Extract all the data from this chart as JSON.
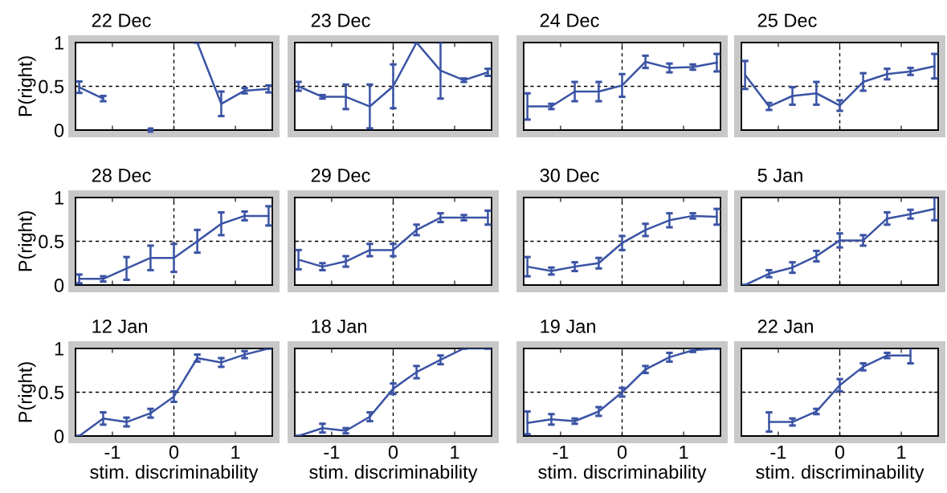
{
  "chart_data": [
    {
      "type": "line",
      "title": "22 Dec",
      "ylabel": "P(right)",
      "tick_labels": "y",
      "x": [
        -1.54,
        -1.15,
        -0.77,
        -0.38,
        0,
        0.38,
        0.77,
        1.15,
        1.54
      ],
      "color": "#3a53a4",
      "values": [
        0.49,
        0.36,
        null,
        0,
        null,
        1.0,
        0.3,
        0.45,
        0.47
      ],
      "errors": [
        0.065,
        0.03,
        null,
        0,
        null,
        0,
        0.14,
        0.03,
        0.04
      ],
      "xlim": [
        -1.6,
        1.6
      ],
      "xticks": [
        {
          "value": -1,
          "label": null
        },
        {
          "value": 0,
          "label": null
        },
        {
          "value": 1,
          "label": null
        }
      ],
      "ylim": [
        0,
        1
      ],
      "yticks": [
        0,
        0.5,
        1
      ],
      "ref_lines": [
        {
          "axis": "x",
          "value": 0,
          "line_style": "dashed"
        },
        {
          "axis": "y",
          "value": 0.5,
          "line_style": "dashed"
        }
      ]
    },
    {
      "type": "line",
      "title": "23 Dec",
      "tick_labels": false,
      "x": [
        -1.54,
        -1.15,
        -0.77,
        -0.38,
        0,
        0.38,
        0.77,
        1.15,
        1.54
      ],
      "color": "#3a53a4",
      "values": [
        0.5,
        0.38,
        0.38,
        0.27,
        0.5,
        1.0,
        0.68,
        0.57,
        0.66
      ],
      "errors": [
        0.05,
        0.02,
        0.14,
        0.25,
        0.25,
        0,
        0.32,
        0.02,
        0.04
      ],
      "xlim": [
        -1.6,
        1.6
      ],
      "xticks": [
        {
          "value": -1,
          "label": null
        },
        {
          "value": 0,
          "label": null
        },
        {
          "value": 1,
          "label": null
        }
      ],
      "ylim": [
        0,
        1
      ],
      "yticks": [
        {
          "value": 0,
          "label": null
        },
        {
          "value": 0.5,
          "label": null
        },
        {
          "value": 1,
          "label": null
        }
      ],
      "ref_lines": [
        {
          "axis": "x",
          "value": 0,
          "line_style": "dashed"
        },
        {
          "axis": "y",
          "value": 0.5,
          "line_style": "dashed"
        }
      ]
    },
    {
      "type": "line",
      "title": "24 Dec",
      "tick_labels": false,
      "x": [
        -1.54,
        -1.15,
        -0.77,
        -0.38,
        0,
        0.38,
        0.77,
        1.15,
        1.54
      ],
      "color": "#3a53a4",
      "values": [
        0.27,
        0.27,
        0.44,
        0.44,
        0.51,
        0.78,
        0.71,
        0.72,
        0.77
      ],
      "errors": [
        0.15,
        0.03,
        0.11,
        0.11,
        0.13,
        0.07,
        0.05,
        0.03,
        0.1
      ],
      "xlim": [
        -1.6,
        1.6
      ],
      "xticks": [
        {
          "value": -1,
          "label": null
        },
        {
          "value": 0,
          "label": null
        },
        {
          "value": 1,
          "label": null
        }
      ],
      "ylim": [
        0,
        1
      ],
      "yticks": [
        {
          "value": 0,
          "label": null
        },
        {
          "value": 0.5,
          "label": null
        },
        {
          "value": 1,
          "label": null
        }
      ],
      "ref_lines": [
        {
          "axis": "x",
          "value": 0,
          "line_style": "dashed"
        },
        {
          "axis": "y",
          "value": 0.5,
          "line_style": "dashed"
        }
      ]
    },
    {
      "type": "line",
      "title": "25 Dec",
      "tick_labels": false,
      "x": [
        -1.54,
        -1.15,
        -0.77,
        -0.38,
        0,
        0.38,
        0.77,
        1.15,
        1.54
      ],
      "color": "#3a53a4",
      "values": [
        0.63,
        0.27,
        0.39,
        0.42,
        0.28,
        0.55,
        0.64,
        0.67,
        0.73
      ],
      "errors": [
        0.16,
        0.04,
        0.1,
        0.13,
        0.06,
        0.1,
        0.06,
        0.04,
        0.14
      ],
      "xlim": [
        -1.6,
        1.6
      ],
      "xticks": [
        {
          "value": -1,
          "label": null
        },
        {
          "value": 0,
          "label": null
        },
        {
          "value": 1,
          "label": null
        }
      ],
      "ylim": [
        0,
        1
      ],
      "yticks": [
        {
          "value": 0,
          "label": null
        },
        {
          "value": 0.5,
          "label": null
        },
        {
          "value": 1,
          "label": null
        }
      ],
      "ref_lines": [
        {
          "axis": "x",
          "value": 0,
          "line_style": "dashed"
        },
        {
          "axis": "y",
          "value": 0.5,
          "line_style": "dashed"
        }
      ]
    },
    {
      "type": "line",
      "title": "28 Dec",
      "ylabel": "P(right)",
      "tick_labels": "y",
      "x": [
        -1.54,
        -1.15,
        -0.77,
        -0.38,
        0,
        0.38,
        0.77,
        1.15,
        1.54
      ],
      "color": "#3a53a4",
      "values": [
        0.07,
        0.07,
        0.19,
        0.31,
        0.31,
        0.5,
        0.7,
        0.79,
        0.79
      ],
      "errors": [
        0.05,
        0.03,
        0.13,
        0.14,
        0.16,
        0.13,
        0.13,
        0.05,
        0.11
      ],
      "xlim": [
        -1.6,
        1.6
      ],
      "xticks": [
        {
          "value": -1,
          "label": null
        },
        {
          "value": 0,
          "label": null
        },
        {
          "value": 1,
          "label": null
        }
      ],
      "ylim": [
        0,
        1
      ],
      "yticks": [
        0,
        0.5,
        1
      ],
      "ref_lines": [
        {
          "axis": "x",
          "value": 0,
          "line_style": "dashed"
        },
        {
          "axis": "y",
          "value": 0.5,
          "line_style": "dashed"
        }
      ]
    },
    {
      "type": "line",
      "title": "29 Dec",
      "tick_labels": false,
      "x": [
        -1.54,
        -1.15,
        -0.77,
        -0.38,
        0,
        0.38,
        0.77,
        1.15,
        1.54
      ],
      "color": "#3a53a4",
      "values": [
        0.29,
        0.21,
        0.27,
        0.4,
        0.4,
        0.63,
        0.77,
        0.77,
        0.77
      ],
      "errors": [
        0.11,
        0.04,
        0.06,
        0.07,
        0.07,
        0.06,
        0.05,
        0.03,
        0.08
      ],
      "xlim": [
        -1.6,
        1.6
      ],
      "xticks": [
        {
          "value": -1,
          "label": null
        },
        {
          "value": 0,
          "label": null
        },
        {
          "value": 1,
          "label": null
        }
      ],
      "ylim": [
        0,
        1
      ],
      "yticks": [
        {
          "value": 0,
          "label": null
        },
        {
          "value": 0.5,
          "label": null
        },
        {
          "value": 1,
          "label": null
        }
      ],
      "ref_lines": [
        {
          "axis": "x",
          "value": 0,
          "line_style": "dashed"
        },
        {
          "axis": "y",
          "value": 0.5,
          "line_style": "dashed"
        }
      ]
    },
    {
      "type": "line",
      "title": "30 Dec",
      "tick_labels": false,
      "x": [
        -1.54,
        -1.15,
        -0.77,
        -0.38,
        0,
        0.38,
        0.77,
        1.15,
        1.54
      ],
      "color": "#3a53a4",
      "values": [
        0.21,
        0.16,
        0.21,
        0.25,
        0.48,
        0.63,
        0.74,
        0.79,
        0.78
      ],
      "errors": [
        0.11,
        0.04,
        0.05,
        0.06,
        0.08,
        0.07,
        0.08,
        0.03,
        0.09
      ],
      "xlim": [
        -1.6,
        1.6
      ],
      "xticks": [
        {
          "value": -1,
          "label": null
        },
        {
          "value": 0,
          "label": null
        },
        {
          "value": 1,
          "label": null
        }
      ],
      "ylim": [
        0,
        1
      ],
      "yticks": [
        {
          "value": 0,
          "label": null
        },
        {
          "value": 0.5,
          "label": null
        },
        {
          "value": 1,
          "label": null
        }
      ],
      "ref_lines": [
        {
          "axis": "x",
          "value": 0,
          "line_style": "dashed"
        },
        {
          "axis": "y",
          "value": 0.5,
          "line_style": "dashed"
        }
      ]
    },
    {
      "type": "line",
      "title": "5 Jan",
      "tick_labels": false,
      "x": [
        -1.54,
        -1.15,
        -0.77,
        -0.38,
        0,
        0.38,
        0.77,
        1.15,
        1.54
      ],
      "color": "#3a53a4",
      "values": [
        0,
        0.13,
        0.2,
        0.33,
        0.51,
        0.51,
        0.76,
        0.81,
        0.87
      ],
      "errors": [
        0,
        0.04,
        0.06,
        0.06,
        0.08,
        0.06,
        0.07,
        0.05,
        0.13
      ],
      "xlim": [
        -1.6,
        1.6
      ],
      "xticks": [
        {
          "value": -1,
          "label": null
        },
        {
          "value": 0,
          "label": null
        },
        {
          "value": 1,
          "label": null
        }
      ],
      "ylim": [
        0,
        1
      ],
      "yticks": [
        {
          "value": 0,
          "label": null
        },
        {
          "value": 0.5,
          "label": null
        },
        {
          "value": 1,
          "label": null
        }
      ],
      "ref_lines": [
        {
          "axis": "x",
          "value": 0,
          "line_style": "dashed"
        },
        {
          "axis": "y",
          "value": 0.5,
          "line_style": "dashed"
        }
      ]
    },
    {
      "type": "line",
      "title": "12 Jan",
      "xlabel": "stim. discriminability",
      "ylabel": "P(right)",
      "x": [
        -1.54,
        -1.15,
        -0.77,
        -0.38,
        0,
        0.38,
        0.77,
        1.15,
        1.54
      ],
      "color": "#3a53a4",
      "values": [
        0,
        0.2,
        0.16,
        0.26,
        0.45,
        0.89,
        0.84,
        0.93,
        1.0
      ],
      "errors": [
        0,
        0.07,
        0.05,
        0.05,
        0.06,
        0.04,
        0.05,
        0.04,
        0
      ],
      "xlim": [
        -1.6,
        1.6
      ],
      "xticks": [
        -1,
        0,
        1
      ],
      "ylim": [
        0,
        1
      ],
      "yticks": [
        0,
        0.5,
        1
      ],
      "ref_lines": [
        {
          "axis": "x",
          "value": 0,
          "line_style": "dashed"
        },
        {
          "axis": "y",
          "value": 0.5,
          "line_style": "dashed"
        }
      ]
    },
    {
      "type": "line",
      "title": "18 Jan",
      "xlabel": "stim. discriminability",
      "tick_labels": "x",
      "x": [
        -1.54,
        -1.15,
        -0.77,
        -0.38,
        0,
        0.38,
        0.77,
        1.15,
        1.54
      ],
      "color": "#3a53a4",
      "values": [
        0,
        0.09,
        0.06,
        0.22,
        0.54,
        0.73,
        0.87,
        1.0,
        1.0
      ],
      "errors": [
        0,
        0.05,
        0.03,
        0.05,
        0.06,
        0.07,
        0.05,
        0,
        0
      ],
      "xlim": [
        -1.6,
        1.6
      ],
      "xticks": [
        -1,
        0,
        1
      ],
      "ylim": [
        0,
        1
      ],
      "yticks": [
        {
          "value": 0,
          "label": null
        },
        {
          "value": 0.5,
          "label": null
        },
        {
          "value": 1,
          "label": null
        }
      ],
      "ref_lines": [
        {
          "axis": "x",
          "value": 0,
          "line_style": "dashed"
        },
        {
          "axis": "y",
          "value": 0.5,
          "line_style": "dashed"
        }
      ]
    },
    {
      "type": "line",
      "title": "19 Jan",
      "xlabel": "stim. discriminability",
      "tick_labels": "x",
      "x": [
        -1.54,
        -1.15,
        -0.77,
        -0.38,
        0,
        0.38,
        0.77,
        1.15,
        1.54
      ],
      "color": "#3a53a4",
      "values": [
        0.15,
        0.19,
        0.17,
        0.28,
        0.5,
        0.76,
        0.9,
        0.98,
        1.0
      ],
      "errors": [
        0.13,
        0.06,
        0.03,
        0.05,
        0.05,
        0.04,
        0.05,
        0.02,
        0
      ],
      "xlim": [
        -1.6,
        1.6
      ],
      "xticks": [
        -1,
        0,
        1
      ],
      "ylim": [
        0,
        1
      ],
      "yticks": [
        {
          "value": 0,
          "label": null
        },
        {
          "value": 0.5,
          "label": null
        },
        {
          "value": 1,
          "label": null
        }
      ],
      "ref_lines": [
        {
          "axis": "x",
          "value": 0,
          "line_style": "dashed"
        },
        {
          "axis": "y",
          "value": 0.5,
          "line_style": "dashed"
        }
      ]
    },
    {
      "type": "line",
      "title": "22 Jan",
      "xlabel": "stim. discriminability",
      "tick_labels": "x",
      "x": [
        -1.15,
        -0.77,
        -0.38,
        0,
        0.38,
        0.77,
        1.15
      ],
      "color": "#3a53a4",
      "values": [
        0.16,
        0.16,
        0.28,
        0.58,
        0.79,
        0.92,
        0.92
      ],
      "errors": [
        0.11,
        0.04,
        0.03,
        0.07,
        0.04,
        0.03,
        0.09
      ],
      "xlim": [
        -1.6,
        1.6
      ],
      "xticks": [
        -1,
        0,
        1
      ],
      "ylim": [
        0,
        1
      ],
      "yticks": [
        {
          "value": 0,
          "label": null
        },
        {
          "value": 0.5,
          "label": null
        },
        {
          "value": 1,
          "label": null
        }
      ],
      "ref_lines": [
        {
          "axis": "x",
          "value": 0,
          "line_style": "dashed"
        },
        {
          "axis": "y",
          "value": 0.5,
          "line_style": "dashed"
        }
      ]
    }
  ]
}
